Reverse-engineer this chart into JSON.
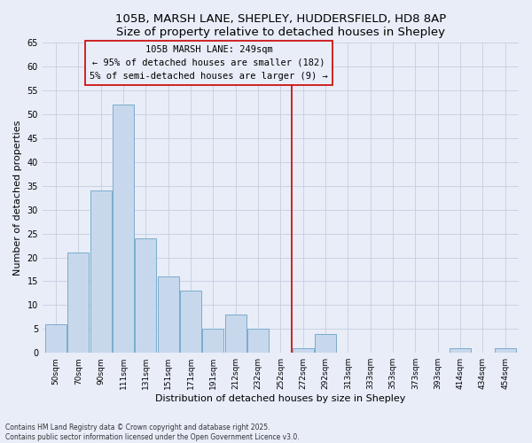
{
  "title": "105B, MARSH LANE, SHEPLEY, HUDDERSFIELD, HD8 8AP",
  "subtitle": "Size of property relative to detached houses in Shepley",
  "xlabel": "Distribution of detached houses by size in Shepley",
  "ylabel": "Number of detached properties",
  "bar_labels": [
    "50sqm",
    "70sqm",
    "90sqm",
    "111sqm",
    "131sqm",
    "151sqm",
    "171sqm",
    "191sqm",
    "212sqm",
    "232sqm",
    "252sqm",
    "272sqm",
    "292sqm",
    "313sqm",
    "333sqm",
    "353sqm",
    "373sqm",
    "393sqm",
    "414sqm",
    "434sqm",
    "454sqm"
  ],
  "bar_values": [
    6,
    21,
    34,
    52,
    24,
    16,
    13,
    5,
    8,
    5,
    0,
    1,
    4,
    0,
    0,
    0,
    0,
    0,
    1,
    0,
    1
  ],
  "bar_color": "#c8d8ec",
  "bar_edge_color": "#7aaccc",
  "vline_x": 10.5,
  "vline_color": "#cc0000",
  "annotation_line1": "105B MARSH LANE: 249sqm",
  "annotation_line2": "← 95% of detached houses are smaller (182)",
  "annotation_line3": "5% of semi-detached houses are larger (9) →",
  "ylim": [
    0,
    65
  ],
  "yticks": [
    0,
    5,
    10,
    15,
    20,
    25,
    30,
    35,
    40,
    45,
    50,
    55,
    60,
    65
  ],
  "footer_line1": "Contains HM Land Registry data © Crown copyright and database right 2025.",
  "footer_line2": "Contains public sector information licensed under the Open Government Licence v3.0.",
  "background_color": "#e8edf8",
  "plot_bg_color": "#e8edf8",
  "grid_color": "#c5cfe0",
  "title_fontsize": 9.5,
  "subtitle_fontsize": 8.5,
  "annotation_fontsize": 7.5
}
